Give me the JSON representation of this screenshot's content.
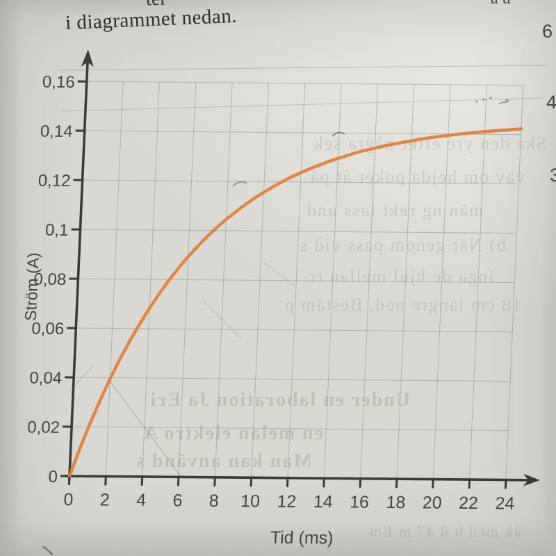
{
  "page": {
    "top_partial_text": "ter",
    "top_right_partial_text": "au",
    "heading": "i diagrammet nedan.",
    "margin_numbers": [
      "6",
      "4",
      "3"
    ],
    "ghost_lines": [
      "Ska den  yre efter några sek",
      "väv om hejda  poker  åt  på",
      "män  ng rekt lass  und",
      "b) När  genom  pass  vid s",
      "inga  de  hjul  mellan  rc",
      "18 cm längre ned. Bestäm p",
      "Under en laboration  Ja Eri",
      "en  melan  elektro  A",
      "Man  kan  använd  s",
      "åk med  b  d  47 m  Em"
    ]
  },
  "chart_data": {
    "type": "line",
    "title": "",
    "xlabel": "Tid (ms)",
    "ylabel": "Ström (A)",
    "xlim": [
      0,
      24
    ],
    "ylim": [
      0,
      0.16
    ],
    "grid": true,
    "legend": "none",
    "xticks": [
      0,
      2,
      4,
      6,
      8,
      10,
      12,
      14,
      16,
      18,
      20,
      22,
      24
    ],
    "xtick_labels": [
      "0",
      "2",
      "4",
      "6",
      "8",
      "10",
      "12",
      "14",
      "16",
      "18",
      "20",
      "22",
      "24"
    ],
    "yticks": [
      0,
      0.02,
      0.04,
      0.06,
      0.08,
      0.1,
      0.12,
      0.14,
      0.16
    ],
    "ytick_labels": [
      "0",
      "0,02",
      "0,04",
      "0,06",
      "0,08",
      "0,1",
      "0,12",
      "0,14",
      "0,16"
    ],
    "curve_color": "#e0803d",
    "axis_color": "#3c3c3a",
    "grid_color": "#8f9894",
    "label_color": "#474743",
    "series": [
      {
        "name": "Ström",
        "x_start": 0,
        "x_step": 0.5,
        "values": [
          0,
          0.0111,
          0.0214,
          0.0308,
          0.0396,
          0.0477,
          0.0551,
          0.062,
          0.0684,
          0.0743,
          0.0797,
          0.0847,
          0.0894,
          0.0936,
          0.0976,
          0.1013,
          0.1046,
          0.1077,
          0.1106,
          0.1133,
          0.1157,
          0.118,
          0.1201,
          0.1221,
          0.1238,
          0.1255,
          0.127,
          0.1284,
          0.1297,
          0.1309,
          0.1321,
          0.1331,
          0.134,
          0.1349,
          0.1357,
          0.1364,
          0.1371,
          0.1378,
          0.1384,
          0.1389,
          0.1394,
          0.1399,
          0.1403,
          0.1407,
          0.1411,
          0.1414,
          0.1417,
          0.142,
          0.1423
        ]
      }
    ]
  }
}
